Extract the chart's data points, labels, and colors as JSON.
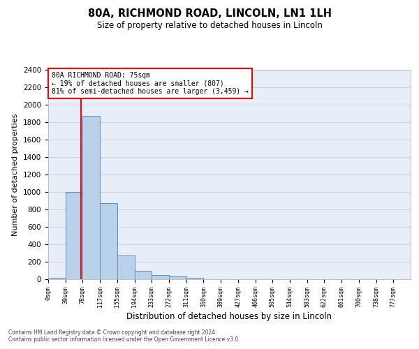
{
  "title1": "80A, RICHMOND ROAD, LINCOLN, LN1 1LH",
  "title2": "Size of property relative to detached houses in Lincoln",
  "xlabel": "Distribution of detached houses by size in Lincoln",
  "ylabel": "Number of detached properties",
  "bar_categories": [
    "0sqm",
    "39sqm",
    "78sqm",
    "117sqm",
    "155sqm",
    "194sqm",
    "233sqm",
    "272sqm",
    "311sqm",
    "350sqm",
    "389sqm",
    "427sqm",
    "466sqm",
    "505sqm",
    "544sqm",
    "583sqm",
    "622sqm",
    "661sqm",
    "700sqm",
    "738sqm",
    "777sqm"
  ],
  "bar_values": [
    20,
    1000,
    1870,
    870,
    270,
    100,
    50,
    30,
    20,
    0,
    0,
    0,
    0,
    0,
    0,
    0,
    0,
    0,
    0,
    0,
    0
  ],
  "bar_color": "#b8d0e8",
  "bar_edgecolor": "#5590c8",
  "bar_linewidth": 0.7,
  "grid_color": "#c8d8ec",
  "bg_color": "#e8eef8",
  "vline_x": 1.92,
  "vline_color": "red",
  "vline_linewidth": 1.5,
  "annotation_text": "80A RICHMOND ROAD: 75sqm\n← 19% of detached houses are smaller (807)\n81% of semi-detached houses are larger (3,459) →",
  "ylim": [
    0,
    2400
  ],
  "yticks": [
    0,
    200,
    400,
    600,
    800,
    1000,
    1200,
    1400,
    1600,
    1800,
    2000,
    2200,
    2400
  ],
  "footnote1": "Contains HM Land Registry data © Crown copyright and database right 2024.",
  "footnote2": "Contains public sector information licensed under the Open Government Licence v3.0."
}
